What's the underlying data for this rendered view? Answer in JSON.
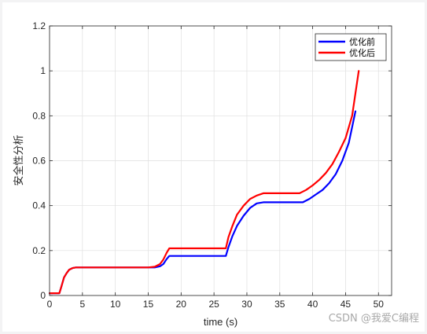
{
  "chart_data": {
    "type": "line",
    "title": "",
    "xlabel": "time (s)",
    "ylabel": "安全性分析",
    "xlim": [
      0,
      52
    ],
    "ylim": [
      0,
      1.2
    ],
    "xticks": [
      0,
      5,
      10,
      15,
      20,
      25,
      30,
      35,
      40,
      45,
      50
    ],
    "yticks": [
      0,
      0.2,
      0.4,
      0.6,
      0.8,
      1,
      1.2
    ],
    "ytick_labels": [
      "0",
      "0.2",
      "0.4",
      "0.6",
      "0.8",
      "1",
      "1.2"
    ],
    "grid": true,
    "legend_position": "top-right",
    "series": [
      {
        "name": "优化前",
        "color": "#0000ff",
        "x": [
          0,
          1.5,
          1.8,
          2.2,
          2.6,
          3.0,
          3.5,
          4.0,
          5.0,
          10,
          15,
          16.0,
          16.8,
          17.3,
          17.8,
          18.2,
          20,
          25,
          26.8,
          27.2,
          27.8,
          28.5,
          29.5,
          30.5,
          31.5,
          32.5,
          35,
          38.5,
          39.5,
          40.5,
          41.5,
          42.5,
          43.5,
          44.5,
          45.5,
          46.5
        ],
        "y": [
          0.01,
          0.01,
          0.04,
          0.08,
          0.1,
          0.115,
          0.122,
          0.125,
          0.125,
          0.125,
          0.125,
          0.125,
          0.13,
          0.14,
          0.162,
          0.176,
          0.176,
          0.176,
          0.176,
          0.215,
          0.265,
          0.31,
          0.355,
          0.39,
          0.41,
          0.415,
          0.415,
          0.415,
          0.43,
          0.45,
          0.47,
          0.5,
          0.54,
          0.6,
          0.68,
          0.82
        ]
      },
      {
        "name": "优化后",
        "color": "#ff0000",
        "x": [
          0,
          1.5,
          1.8,
          2.2,
          2.6,
          3.0,
          3.5,
          4.0,
          5.0,
          10,
          15,
          16.0,
          16.8,
          17.3,
          17.8,
          18.2,
          20,
          25,
          26.8,
          27.2,
          27.8,
          28.5,
          29.5,
          30.5,
          31.5,
          32.5,
          35,
          38,
          39,
          40,
          41,
          42,
          43,
          44,
          45,
          46,
          47
        ],
        "y": [
          0.01,
          0.01,
          0.04,
          0.08,
          0.1,
          0.115,
          0.122,
          0.125,
          0.125,
          0.125,
          0.125,
          0.128,
          0.14,
          0.16,
          0.19,
          0.21,
          0.21,
          0.21,
          0.21,
          0.26,
          0.31,
          0.36,
          0.4,
          0.43,
          0.445,
          0.455,
          0.455,
          0.455,
          0.47,
          0.49,
          0.515,
          0.545,
          0.585,
          0.64,
          0.7,
          0.8,
          1.0
        ]
      }
    ]
  },
  "watermark": "CSDN @我爱C编程"
}
